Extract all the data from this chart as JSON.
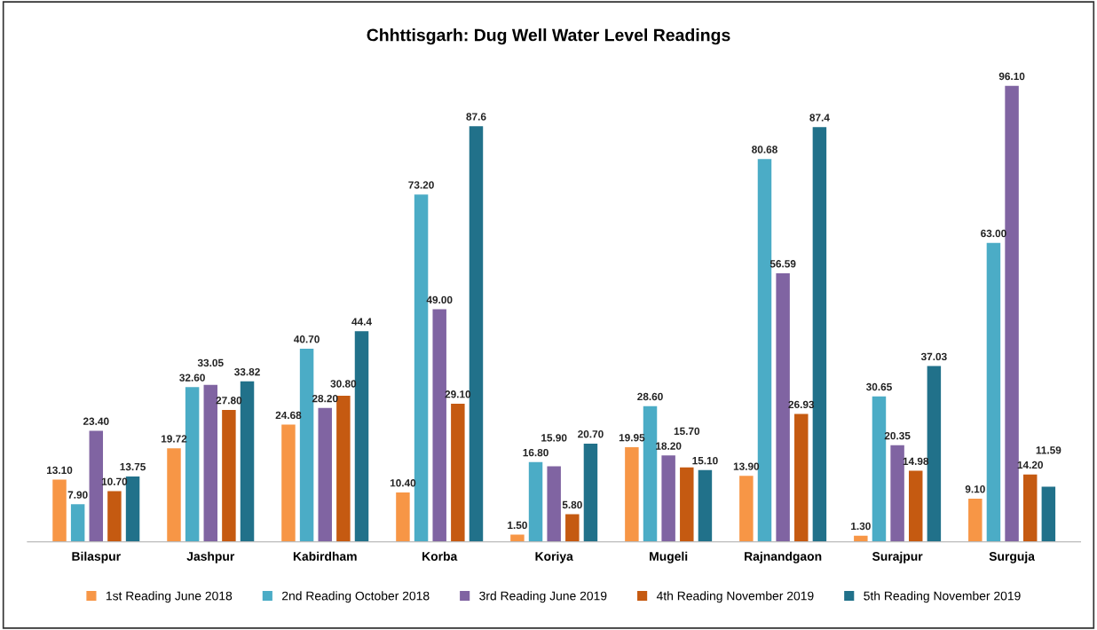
{
  "chart_data": {
    "type": "bar",
    "title": "Chhttisgarh: Dug Well Water Level Readings",
    "categories": [
      "Bilaspur",
      "Jashpur",
      "Kabirdham",
      "Korba",
      "Koriya",
      "Mugeli",
      "Rajnandgaon",
      "Surajpur",
      "Surguja"
    ],
    "series": [
      {
        "name": "1st Reading June 2018",
        "color": "#f79646",
        "values": [
          13.1,
          19.72,
          24.68,
          10.4,
          1.5,
          19.95,
          13.9,
          1.3,
          9.1
        ],
        "value_labels": [
          "13.10",
          "19.72",
          "24.68",
          "10.40",
          "1.50",
          "19.95",
          "13.90",
          "1.30",
          "9.10"
        ]
      },
      {
        "name": "2nd Reading October 2018",
        "color": "#4bacc6",
        "values": [
          7.9,
          32.6,
          40.7,
          73.2,
          16.8,
          28.6,
          80.68,
          30.65,
          63.0
        ],
        "value_labels": [
          "7.90",
          "32.60",
          "40.70",
          "73.20",
          "16.80",
          "28.60",
          "80.68",
          "30.65",
          "63.00"
        ]
      },
      {
        "name": "3rd Reading June 2019",
        "color": "#8064a2",
        "values": [
          23.4,
          33.05,
          28.2,
          49.0,
          15.9,
          18.2,
          56.59,
          20.35,
          96.1
        ],
        "value_labels": [
          "23.40",
          "33.05",
          "28.20",
          "49.00",
          "15.90",
          "18.20",
          "56.59",
          "20.35",
          "96.10"
        ]
      },
      {
        "name": "4th Reading November 2019",
        "color": "#c55a11",
        "values": [
          10.7,
          27.8,
          30.8,
          29.1,
          5.8,
          15.7,
          26.93,
          14.98,
          14.2
        ],
        "value_labels": [
          "10.70",
          "27.80",
          "30.80",
          "29.10",
          "5.80",
          "15.70",
          "26.93",
          "14.98",
          "14.20"
        ]
      },
      {
        "name": "5th Reading November 2019",
        "color": "#21718a",
        "values": [
          13.75,
          33.82,
          44.4,
          87.6,
          20.7,
          15.1,
          87.4,
          37.03,
          11.59
        ],
        "value_labels": [
          "13.75",
          "33.82",
          "44.4",
          "87.6",
          "20.70",
          "15.10",
          "87.4",
          "37.03",
          "11.59"
        ]
      }
    ],
    "legend": "bottom"
  }
}
